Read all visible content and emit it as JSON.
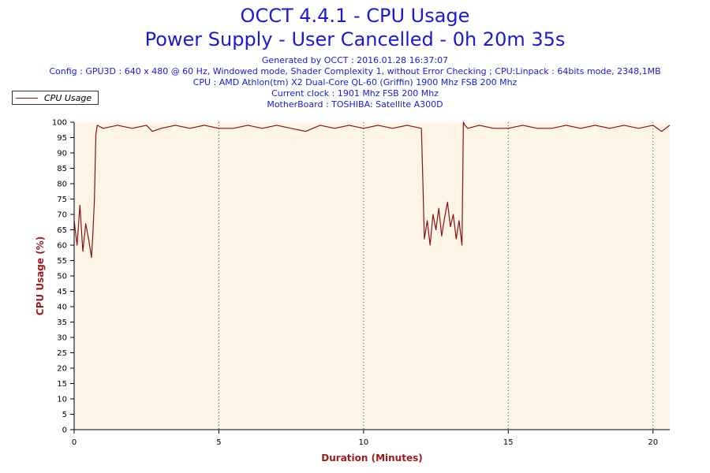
{
  "header": {
    "title_line1": "OCCT 4.4.1 - CPU Usage",
    "title_line2": "Power Supply - User Cancelled - 0h 20m 35s",
    "info_lines": [
      "Generated by OCCT : 2016.01.28 16:37:07",
      "Config : GPU3D : 640 x 480 @ 60 Hz, Windowed mode, Shader Complexity 1, without Error Checking ; CPU:Linpack : 64bits mode, 2348,1MB",
      "CPU : AMD Athlon(tm) X2 Dual-Core QL-60 (Griffin) 1900 Mhz FSB 200 Mhz",
      "Current clock : 1901 Mhz FSB 200 Mhz",
      "MotherBoard : TOSHIBA: Satellite A300D"
    ]
  },
  "legend": {
    "label": "CPU Usage"
  },
  "colors": {
    "series": "#8b1010",
    "plot_bg": "#fdf5e6",
    "title": "#1a1ad6",
    "axis_title": "#9a1b1b"
  },
  "chart_data": {
    "type": "line",
    "xlabel": "Duration (Minutes)",
    "ylabel": "CPU Usage (%)",
    "xlim": [
      0,
      20.58
    ],
    "ylim": [
      0,
      100
    ],
    "x_ticks": [
      0,
      5,
      10,
      15,
      20
    ],
    "y_ticks": [
      0,
      5,
      10,
      15,
      20,
      25,
      30,
      35,
      40,
      45,
      50,
      55,
      60,
      65,
      70,
      75,
      80,
      85,
      90,
      95,
      100
    ],
    "grid": "vertical-dotted",
    "legend_position": "top-left",
    "series": [
      {
        "name": "CPU Usage",
        "x": [
          0,
          0.1,
          0.2,
          0.3,
          0.4,
          0.5,
          0.6,
          0.65,
          0.7,
          0.75,
          0.8,
          1.0,
          1.5,
          2.0,
          2.5,
          2.7,
          3.0,
          3.5,
          4.0,
          4.5,
          5.0,
          5.5,
          6.0,
          6.5,
          7.0,
          7.5,
          8.0,
          8.5,
          9.0,
          9.5,
          10.0,
          10.5,
          11.0,
          11.5,
          12.0,
          12.05,
          12.1,
          12.2,
          12.3,
          12.4,
          12.5,
          12.6,
          12.7,
          12.8,
          12.9,
          13.0,
          13.1,
          13.2,
          13.3,
          13.4,
          13.45,
          13.5,
          13.6,
          14.0,
          14.5,
          15.0,
          15.5,
          16.0,
          16.5,
          17.0,
          17.5,
          18.0,
          18.5,
          19.0,
          19.5,
          20.0,
          20.3,
          20.58
        ],
        "y": [
          68,
          60,
          73,
          58,
          67,
          62,
          56,
          64,
          75,
          96,
          99,
          98,
          99,
          98,
          99,
          97,
          98,
          99,
          98,
          99,
          98,
          98,
          99,
          98,
          99,
          98,
          97,
          99,
          98,
          99,
          98,
          99,
          98,
          99,
          98,
          80,
          62,
          68,
          60,
          70,
          65,
          72,
          63,
          69,
          74,
          66,
          70,
          62,
          68,
          60,
          100,
          99,
          98,
          99,
          98,
          98,
          99,
          98,
          98,
          99,
          98,
          99,
          98,
          99,
          98,
          99,
          97,
          99
        ]
      }
    ]
  }
}
